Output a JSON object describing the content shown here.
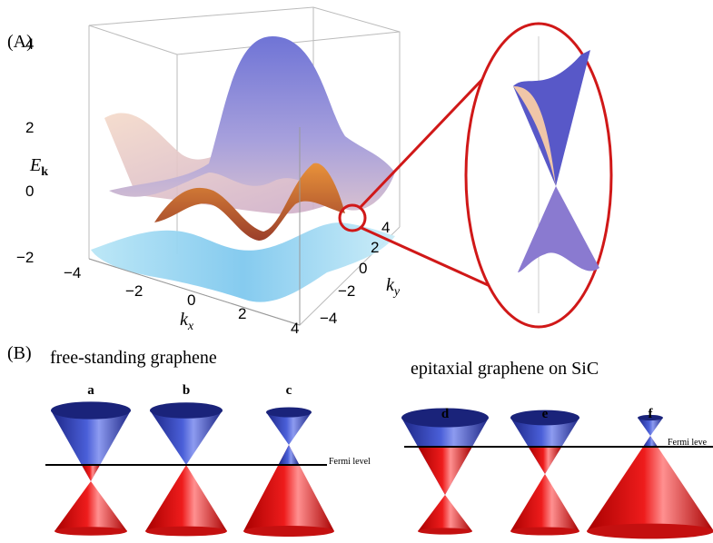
{
  "panel_a": {
    "label": "(A)",
    "z_axis": {
      "label": "E",
      "label_sub": "k",
      "ticks": [
        "4",
        "2",
        "0",
        "−2"
      ]
    },
    "x_axis": {
      "label": "k",
      "label_sub": "x",
      "ticks": [
        "−4",
        "−2",
        "0",
        "2",
        "4"
      ]
    },
    "y_axis": {
      "label": "k",
      "label_sub": "y",
      "ticks": [
        "4",
        "2",
        "0",
        "−2",
        "−4"
      ]
    }
  },
  "panel_b": {
    "label": "(B)",
    "groups": [
      {
        "title": "free-standing graphene",
        "cones": [
          "a",
          "b",
          "c"
        ],
        "fermi_label": "Fermi level"
      },
      {
        "title": "epitaxial graphene on SiC",
        "cones": [
          "d",
          "e",
          "f"
        ],
        "fermi_label": "Fermi leve"
      }
    ]
  }
}
